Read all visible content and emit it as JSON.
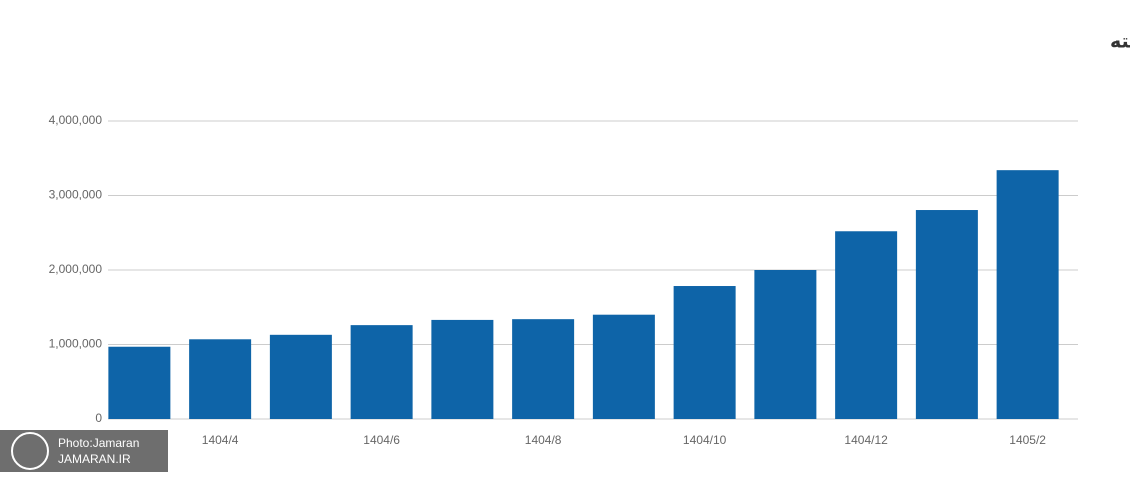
{
  "chart_data": {
    "type": "bar",
    "title": "میانگین کلی قیمت مرغ کشتار در ماه های گذشته",
    "categories": [
      null,
      "1404/4",
      null,
      "1404/6",
      null,
      "1404/8",
      null,
      "1404/10",
      null,
      "1404/12",
      null,
      "1405/2"
    ],
    "values": [
      970000,
      1070000,
      1130000,
      1260000,
      1330000,
      1340000,
      1400000,
      1785000,
      2000000,
      2520000,
      2805000,
      3340000
    ],
    "color": "#0e64a8",
    "ylim": [
      0,
      4000000
    ],
    "yticks": [
      0,
      {
        "value": 1000000,
        "label": "1,000,000"
      },
      {
        "value": 2000000,
        "label": "2,000,000"
      },
      {
        "value": 3000000,
        "label": "3,000,000"
      },
      {
        "value": 4000000,
        "label": "4,000,000"
      }
    ],
    "grid": true
  },
  "watermark": {
    "line1": "Photo:Jamaran",
    "line2": "JAMARAN.IR"
  }
}
